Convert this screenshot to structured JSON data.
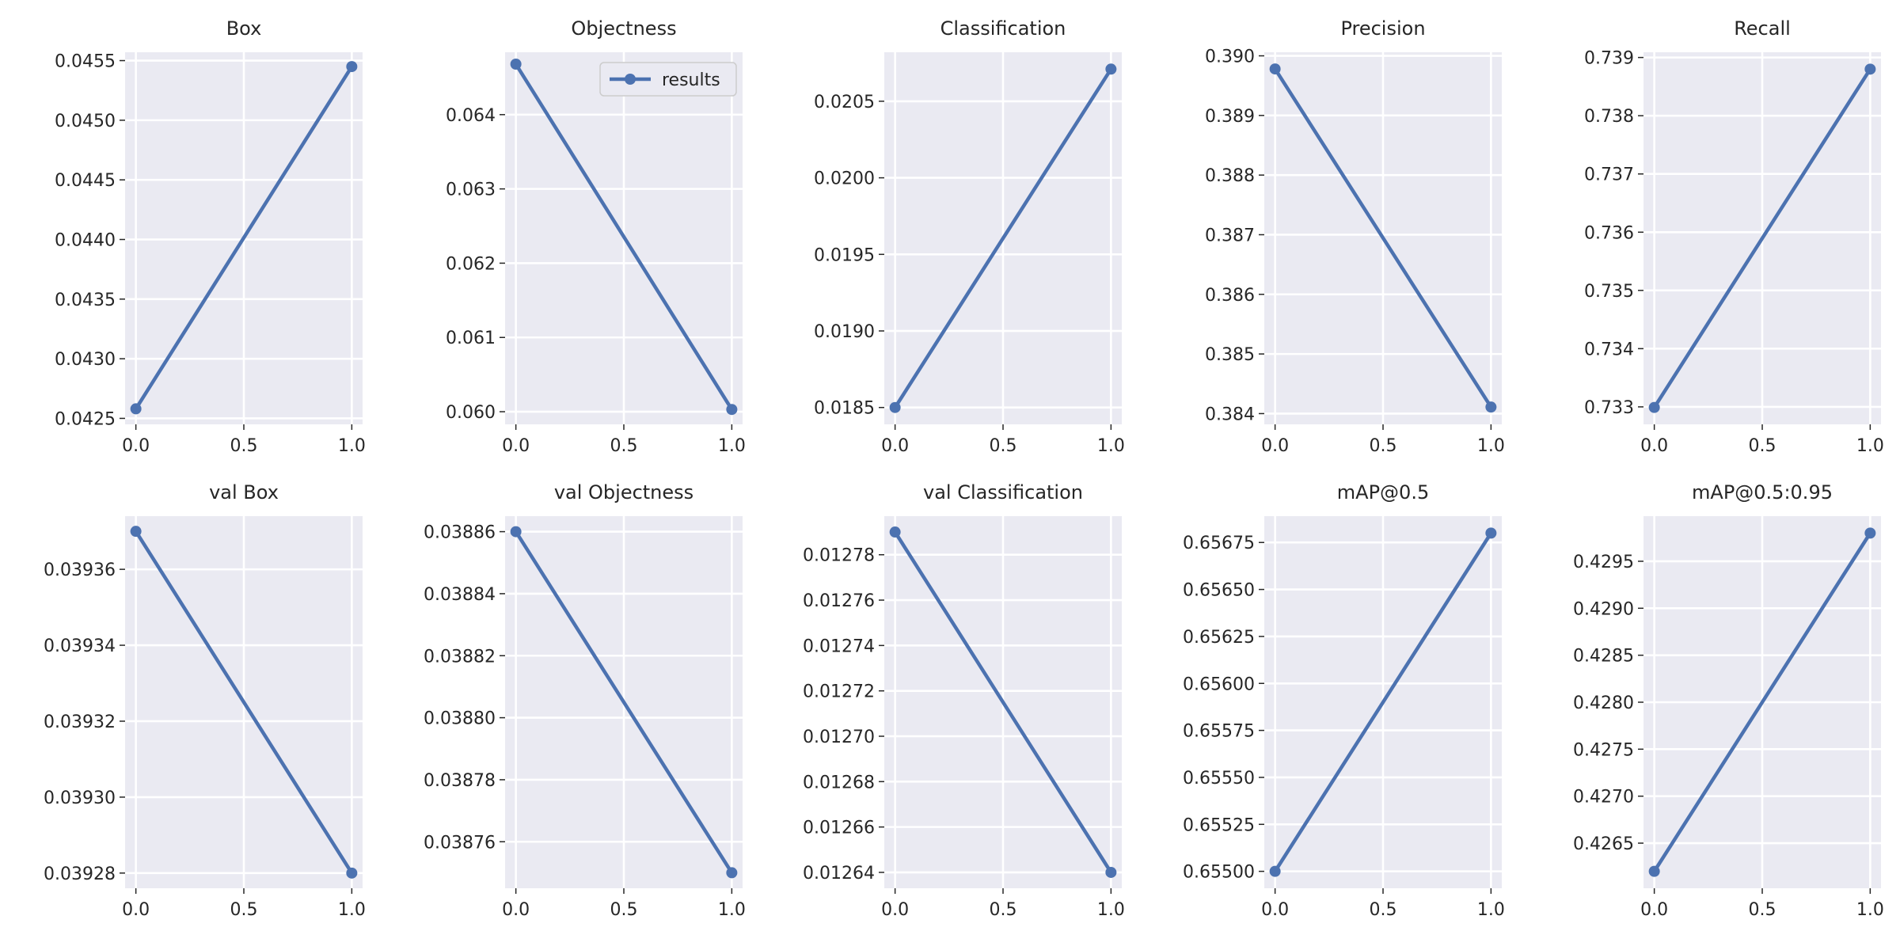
{
  "colors": {
    "series": "#4c72b0",
    "axes_background": "#eaeaf2",
    "grid": "#ffffff",
    "text": "#262626"
  },
  "chart_data": [
    {
      "type": "line",
      "title": "Box",
      "grid": true,
      "x": [
        0,
        1
      ],
      "xlim": [
        -0.05,
        1.05
      ],
      "ylim": [
        0.04245,
        0.04557
      ],
      "xticks": [
        "0.0",
        "0.5",
        "1.0"
      ],
      "yticks": [
        "0.0425",
        "0.0430",
        "0.0435",
        "0.0440",
        "0.0445",
        "0.0450",
        "0.0455"
      ],
      "series": [
        {
          "name": "results",
          "values": [
            0.04258,
            0.04545
          ]
        }
      ]
    },
    {
      "type": "line",
      "title": "Objectness",
      "grid": true,
      "legend": "top-right",
      "x": [
        0,
        1
      ],
      "xlim": [
        -0.05,
        1.05
      ],
      "ylim": [
        0.05983,
        0.06484
      ],
      "xticks": [
        "0.0",
        "0.5",
        "1.0"
      ],
      "yticks": [
        "0.060",
        "0.061",
        "0.062",
        "0.063",
        "0.064"
      ],
      "series": [
        {
          "name": "results",
          "values": [
            0.06468,
            0.06003
          ]
        }
      ]
    },
    {
      "type": "line",
      "title": "Classification",
      "grid": true,
      "x": [
        0,
        1
      ],
      "xlim": [
        -0.05,
        1.05
      ],
      "ylim": [
        0.01839,
        0.02082
      ],
      "xticks": [
        "0.0",
        "0.5",
        "1.0"
      ],
      "yticks": [
        "0.0185",
        "0.0190",
        "0.0195",
        "0.0200",
        "0.0205"
      ],
      "series": [
        {
          "name": "results",
          "values": [
            0.0185,
            0.02071
          ]
        }
      ]
    },
    {
      "type": "line",
      "title": "Precision",
      "grid": true,
      "x": [
        0,
        1
      ],
      "xlim": [
        -0.05,
        1.05
      ],
      "ylim": [
        0.38382,
        0.39006
      ],
      "xticks": [
        "0.0",
        "0.5",
        "1.0"
      ],
      "yticks": [
        "0.384",
        "0.385",
        "0.386",
        "0.387",
        "0.388",
        "0.389",
        "0.390"
      ],
      "series": [
        {
          "name": "results",
          "values": [
            0.38978,
            0.38411
          ]
        }
      ]
    },
    {
      "type": "line",
      "title": "Recall",
      "grid": true,
      "x": [
        0,
        1
      ],
      "xlim": [
        -0.05,
        1.05
      ],
      "ylim": [
        0.7327,
        0.73909
      ],
      "xticks": [
        "0.0",
        "0.5",
        "1.0"
      ],
      "yticks": [
        "0.733",
        "0.734",
        "0.735",
        "0.736",
        "0.737",
        "0.738",
        "0.739"
      ],
      "series": [
        {
          "name": "results",
          "values": [
            0.73299,
            0.7388
          ]
        }
      ]
    },
    {
      "type": "line",
      "title": "val Box",
      "grid": true,
      "x": [
        0,
        1
      ],
      "xlim": [
        -0.05,
        1.05
      ],
      "ylim": [
        0.039276,
        0.039374
      ],
      "xticks": [
        "0.0",
        "0.5",
        "1.0"
      ],
      "yticks": [
        "0.03928",
        "0.03930",
        "0.03932",
        "0.03934",
        "0.03936"
      ],
      "series": [
        {
          "name": "results",
          "values": [
            0.03937,
            0.03928
          ]
        }
      ]
    },
    {
      "type": "line",
      "title": "val Objectness",
      "grid": true,
      "x": [
        0,
        1
      ],
      "xlim": [
        -0.05,
        1.05
      ],
      "ylim": [
        0.038745,
        0.038865
      ],
      "xticks": [
        "0.0",
        "0.5",
        "1.0"
      ],
      "yticks": [
        "0.03876",
        "0.03878",
        "0.03880",
        "0.03882",
        "0.03884",
        "0.03886"
      ],
      "series": [
        {
          "name": "results",
          "values": [
            0.03886,
            0.03875
          ]
        }
      ]
    },
    {
      "type": "line",
      "title": "val Classification",
      "grid": true,
      "x": [
        0,
        1
      ],
      "xlim": [
        -0.05,
        1.05
      ],
      "ylim": [
        0.012633,
        0.012797
      ],
      "xticks": [
        "0.0",
        "0.5",
        "1.0"
      ],
      "yticks": [
        "0.01264",
        "0.01266",
        "0.01268",
        "0.01270",
        "0.01272",
        "0.01274",
        "0.01276",
        "0.01278"
      ],
      "series": [
        {
          "name": "results",
          "values": [
            0.01279,
            0.01264
          ]
        }
      ]
    },
    {
      "type": "line",
      "title": "mAP@0.5",
      "grid": true,
      "x": [
        0,
        1
      ],
      "xlim": [
        -0.05,
        1.05
      ],
      "ylim": [
        0.65491,
        0.65689
      ],
      "xticks": [
        "0.0",
        "0.5",
        "1.0"
      ],
      "yticks": [
        "0.65500",
        "0.65525",
        "0.65550",
        "0.65575",
        "0.65600",
        "0.65625",
        "0.65650",
        "0.65675"
      ],
      "series": [
        {
          "name": "results",
          "values": [
            0.655,
            0.6568
          ]
        }
      ]
    },
    {
      "type": "line",
      "title": "mAP@0.5:0.95",
      "grid": true,
      "x": [
        0,
        1
      ],
      "xlim": [
        -0.05,
        1.05
      ],
      "ylim": [
        0.42602,
        0.42998
      ],
      "xticks": [
        "0.0",
        "0.5",
        "1.0"
      ],
      "yticks": [
        "0.4265",
        "0.4270",
        "0.4275",
        "0.4280",
        "0.4285",
        "0.4290",
        "0.4295"
      ],
      "series": [
        {
          "name": "results",
          "values": [
            0.4262,
            0.4298
          ]
        }
      ]
    }
  ]
}
